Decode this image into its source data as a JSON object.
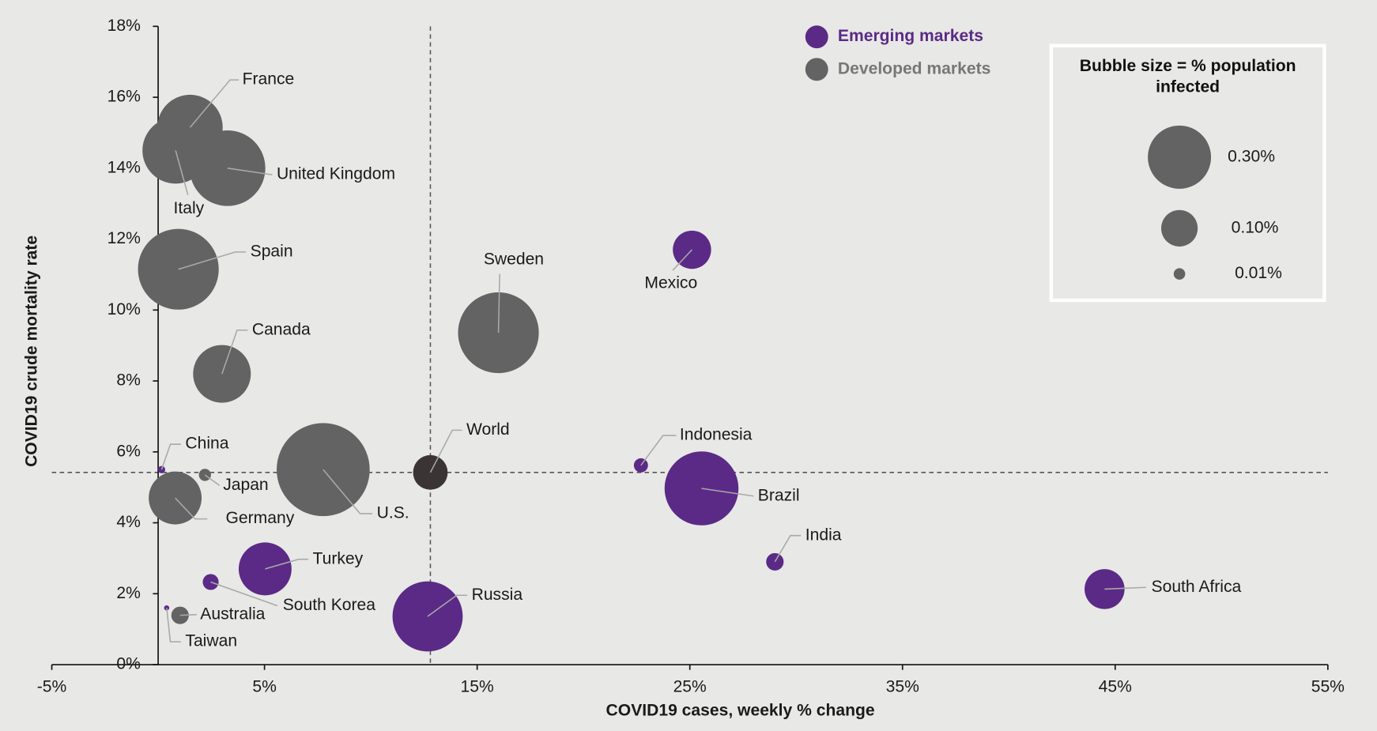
{
  "chart_data": {
    "type": "bubble",
    "xlabel": "COVID19 cases, weekly % change",
    "ylabel": "COVID19 crude mortality rate",
    "xlim": [
      -5,
      55
    ],
    "ylim": [
      0,
      18
    ],
    "xticks": [
      {
        "value": -5,
        "label": "-5%"
      },
      {
        "value": 5,
        "label": "5%"
      },
      {
        "value": 15,
        "label": "15%"
      },
      {
        "value": 25,
        "label": "25%"
      },
      {
        "value": 35,
        "label": "35%"
      },
      {
        "value": 45,
        "label": "45%"
      },
      {
        "value": 55,
        "label": "55%"
      }
    ],
    "yticks": [
      {
        "value": 0,
        "label": "0%"
      },
      {
        "value": 2,
        "label": "2%"
      },
      {
        "value": 4,
        "label": "4%"
      },
      {
        "value": 6,
        "label": "6%"
      },
      {
        "value": 8,
        "label": "8%"
      },
      {
        "value": 10,
        "label": "10%"
      },
      {
        "value": 12,
        "label": "12%"
      },
      {
        "value": 14,
        "label": "14%"
      },
      {
        "value": 16,
        "label": "16%"
      },
      {
        "value": 18,
        "label": "18%"
      }
    ],
    "reference_lines": {
      "x": 12.8,
      "y": 5.42
    },
    "series": [
      {
        "name": "Emerging markets",
        "color": "#5b2a86",
        "labels": [
          "Mexico",
          "Indonesia",
          "Brazil",
          "India",
          "South Africa",
          "Turkey",
          "South Korea",
          "Russia",
          "China",
          "Taiwan"
        ],
        "x": [
          25.1,
          22.7,
          25.55,
          29.0,
          44.5,
          5.03,
          2.47,
          12.67,
          0.16,
          0.4
        ],
        "y": [
          11.7,
          5.62,
          4.97,
          2.9,
          2.13,
          2.7,
          2.33,
          1.36,
          5.5,
          1.6
        ],
        "sizes": [
          0.11,
          0.015,
          0.41,
          0.023,
          0.12,
          0.21,
          0.019,
          0.37,
          0.004,
          0.002
        ]
      },
      {
        "name": "Developed markets",
        "color": "#636363",
        "labels": [
          "France",
          "Italy",
          "United Kingdom",
          "Spain",
          "Canada",
          "Japan",
          "Germany",
          "U.S.",
          "Sweden",
          "Australia"
        ],
        "x": [
          1.5,
          0.82,
          3.26,
          0.95,
          3.0,
          2.2,
          0.8,
          7.76,
          16.0,
          1.03
        ],
        "y": [
          15.15,
          14.5,
          14.0,
          11.15,
          8.2,
          5.35,
          4.7,
          5.5,
          9.36,
          1.39
        ],
        "sizes": [
          0.32,
          0.33,
          0.43,
          0.49,
          0.25,
          0.011,
          0.21,
          0.65,
          0.49,
          0.023
        ]
      }
    ],
    "world": {
      "label": "World",
      "x": 12.8,
      "y": 5.42,
      "size": 0.09,
      "color": "#3b3434"
    },
    "size_legend": {
      "title": "Bubble size = % population infected",
      "entries": [
        {
          "value": 0.3,
          "label": "0.30%"
        },
        {
          "value": 0.1,
          "label": "0.10%"
        },
        {
          "value": 0.01,
          "label": "0.01%"
        }
      ]
    }
  }
}
